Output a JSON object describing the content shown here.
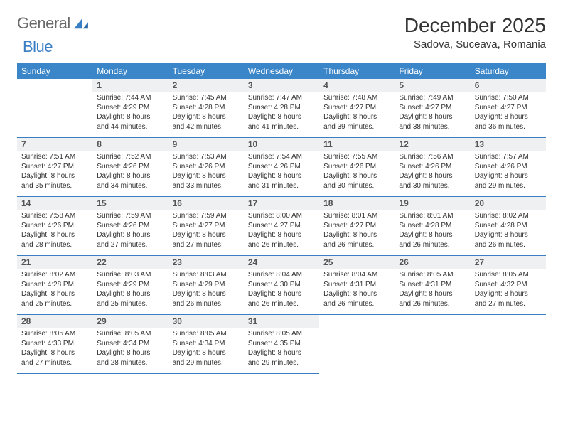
{
  "brand": {
    "word1": "General",
    "word2": "Blue"
  },
  "title": "December 2025",
  "location": "Sadova, Suceava, Romania",
  "colors": {
    "header_bg": "#3a86c8",
    "header_text": "#ffffff",
    "daynum_bg": "#eef0f2",
    "divider": "#3a7fc4",
    "logo_gray": "#6a6a6a",
    "logo_blue": "#3a7fc4",
    "body_text": "#333333",
    "page_bg": "#ffffff"
  },
  "weekdays": [
    "Sunday",
    "Monday",
    "Tuesday",
    "Wednesday",
    "Thursday",
    "Friday",
    "Saturday"
  ],
  "weeks": [
    [
      {
        "n": "",
        "sunrise": "",
        "sunset": "",
        "daylight": ""
      },
      {
        "n": "1",
        "sunrise": "7:44 AM",
        "sunset": "4:29 PM",
        "daylight": "8 hours and 44 minutes."
      },
      {
        "n": "2",
        "sunrise": "7:45 AM",
        "sunset": "4:28 PM",
        "daylight": "8 hours and 42 minutes."
      },
      {
        "n": "3",
        "sunrise": "7:47 AM",
        "sunset": "4:28 PM",
        "daylight": "8 hours and 41 minutes."
      },
      {
        "n": "4",
        "sunrise": "7:48 AM",
        "sunset": "4:27 PM",
        "daylight": "8 hours and 39 minutes."
      },
      {
        "n": "5",
        "sunrise": "7:49 AM",
        "sunset": "4:27 PM",
        "daylight": "8 hours and 38 minutes."
      },
      {
        "n": "6",
        "sunrise": "7:50 AM",
        "sunset": "4:27 PM",
        "daylight": "8 hours and 36 minutes."
      }
    ],
    [
      {
        "n": "7",
        "sunrise": "7:51 AM",
        "sunset": "4:27 PM",
        "daylight": "8 hours and 35 minutes."
      },
      {
        "n": "8",
        "sunrise": "7:52 AM",
        "sunset": "4:26 PM",
        "daylight": "8 hours and 34 minutes."
      },
      {
        "n": "9",
        "sunrise": "7:53 AM",
        "sunset": "4:26 PM",
        "daylight": "8 hours and 33 minutes."
      },
      {
        "n": "10",
        "sunrise": "7:54 AM",
        "sunset": "4:26 PM",
        "daylight": "8 hours and 31 minutes."
      },
      {
        "n": "11",
        "sunrise": "7:55 AM",
        "sunset": "4:26 PM",
        "daylight": "8 hours and 30 minutes."
      },
      {
        "n": "12",
        "sunrise": "7:56 AM",
        "sunset": "4:26 PM",
        "daylight": "8 hours and 30 minutes."
      },
      {
        "n": "13",
        "sunrise": "7:57 AM",
        "sunset": "4:26 PM",
        "daylight": "8 hours and 29 minutes."
      }
    ],
    [
      {
        "n": "14",
        "sunrise": "7:58 AM",
        "sunset": "4:26 PM",
        "daylight": "8 hours and 28 minutes."
      },
      {
        "n": "15",
        "sunrise": "7:59 AM",
        "sunset": "4:26 PM",
        "daylight": "8 hours and 27 minutes."
      },
      {
        "n": "16",
        "sunrise": "7:59 AM",
        "sunset": "4:27 PM",
        "daylight": "8 hours and 27 minutes."
      },
      {
        "n": "17",
        "sunrise": "8:00 AM",
        "sunset": "4:27 PM",
        "daylight": "8 hours and 26 minutes."
      },
      {
        "n": "18",
        "sunrise": "8:01 AM",
        "sunset": "4:27 PM",
        "daylight": "8 hours and 26 minutes."
      },
      {
        "n": "19",
        "sunrise": "8:01 AM",
        "sunset": "4:28 PM",
        "daylight": "8 hours and 26 minutes."
      },
      {
        "n": "20",
        "sunrise": "8:02 AM",
        "sunset": "4:28 PM",
        "daylight": "8 hours and 26 minutes."
      }
    ],
    [
      {
        "n": "21",
        "sunrise": "8:02 AM",
        "sunset": "4:28 PM",
        "daylight": "8 hours and 25 minutes."
      },
      {
        "n": "22",
        "sunrise": "8:03 AM",
        "sunset": "4:29 PM",
        "daylight": "8 hours and 25 minutes."
      },
      {
        "n": "23",
        "sunrise": "8:03 AM",
        "sunset": "4:29 PM",
        "daylight": "8 hours and 26 minutes."
      },
      {
        "n": "24",
        "sunrise": "8:04 AM",
        "sunset": "4:30 PM",
        "daylight": "8 hours and 26 minutes."
      },
      {
        "n": "25",
        "sunrise": "8:04 AM",
        "sunset": "4:31 PM",
        "daylight": "8 hours and 26 minutes."
      },
      {
        "n": "26",
        "sunrise": "8:05 AM",
        "sunset": "4:31 PM",
        "daylight": "8 hours and 26 minutes."
      },
      {
        "n": "27",
        "sunrise": "8:05 AM",
        "sunset": "4:32 PM",
        "daylight": "8 hours and 27 minutes."
      }
    ],
    [
      {
        "n": "28",
        "sunrise": "8:05 AM",
        "sunset": "4:33 PM",
        "daylight": "8 hours and 27 minutes."
      },
      {
        "n": "29",
        "sunrise": "8:05 AM",
        "sunset": "4:34 PM",
        "daylight": "8 hours and 28 minutes."
      },
      {
        "n": "30",
        "sunrise": "8:05 AM",
        "sunset": "4:34 PM",
        "daylight": "8 hours and 29 minutes."
      },
      {
        "n": "31",
        "sunrise": "8:05 AM",
        "sunset": "4:35 PM",
        "daylight": "8 hours and 29 minutes."
      },
      {
        "n": "",
        "sunrise": "",
        "sunset": "",
        "daylight": ""
      },
      {
        "n": "",
        "sunrise": "",
        "sunset": "",
        "daylight": ""
      },
      {
        "n": "",
        "sunrise": "",
        "sunset": "",
        "daylight": ""
      }
    ]
  ]
}
